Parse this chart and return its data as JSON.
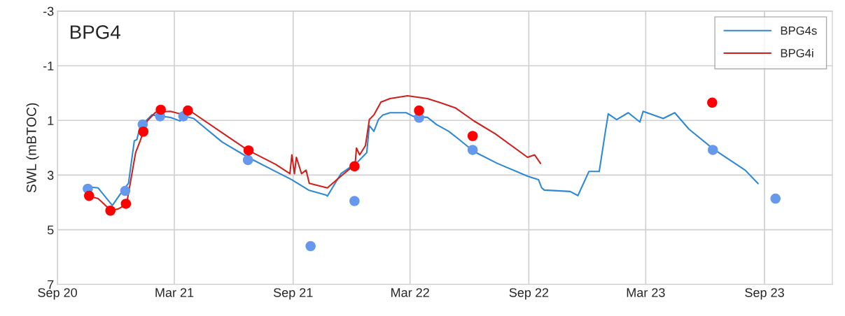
{
  "chart_data": {
    "type": "line",
    "title": "BPG4",
    "ylabel": "SWL (mBTOC)",
    "ylim": [
      7,
      -3
    ],
    "yticks": [
      -3,
      -1,
      1,
      3,
      5,
      7
    ],
    "xlim": [
      "2020-09-01",
      "2023-12-15"
    ],
    "xticks": [
      {
        "value": "2020-09-01",
        "label": "Sep 20"
      },
      {
        "value": "2021-03-01",
        "label": "Mar 21"
      },
      {
        "value": "2021-09-01",
        "label": "Sep 21"
      },
      {
        "value": "2022-03-01",
        "label": "Mar 22"
      },
      {
        "value": "2022-09-01",
        "label": "Sep 22"
      },
      {
        "value": "2023-03-01",
        "label": "Mar 23"
      },
      {
        "value": "2023-09-01",
        "label": "Sep 23"
      }
    ],
    "grid": true,
    "legend": "top right",
    "series": [
      {
        "name": "BPG4s",
        "color": "#2f88d4",
        "marker": "none",
        "x": [
          "2020-10-19",
          "2020-11-03",
          "2020-11-25",
          "2020-12-09",
          "2020-12-20",
          "2020-12-29",
          "2021-01-02",
          "2021-01-07",
          "2021-01-25",
          "2021-02-23",
          "2021-03-10",
          "2021-03-17",
          "2021-03-31",
          "2021-05-14",
          "2021-06-23",
          "2021-08-05",
          "2021-08-30",
          "2021-09-25",
          "2021-10-22",
          "2021-10-24",
          "2021-11-14",
          "2021-12-10",
          "2021-12-24",
          "2021-12-28",
          "2022-01-04",
          "2022-01-11",
          "2022-01-18",
          "2022-01-29",
          "2022-02-23",
          "2022-03-06",
          "2022-03-28",
          "2022-04-11",
          "2022-04-30",
          "2022-05-14",
          "2022-06-08",
          "2022-07-14",
          "2022-08-30",
          "2022-09-16",
          "2022-09-21",
          "2022-09-25",
          "2022-11-04",
          "2022-11-16",
          "2022-12-03",
          "2022-12-19",
          "2022-12-28",
          "2023-01-02",
          "2023-01-15",
          "2023-02-02",
          "2023-02-20",
          "2023-02-25",
          "2023-03-28",
          "2023-04-15",
          "2023-05-07",
          "2023-06-14",
          "2023-08-02",
          "2023-08-22"
        ],
        "values": [
          3.43,
          3.47,
          4.11,
          3.64,
          3.3,
          1.75,
          1.7,
          1.23,
          0.8,
          0.89,
          1.02,
          0.85,
          0.93,
          1.79,
          2.35,
          2.87,
          3.17,
          3.55,
          3.73,
          3.77,
          2.95,
          2.52,
          2.18,
          1.19,
          1.4,
          0.97,
          0.8,
          0.72,
          0.72,
          0.85,
          0.89,
          1.15,
          1.4,
          1.66,
          2.14,
          2.57,
          3.04,
          3.17,
          3.47,
          3.55,
          3.6,
          3.75,
          2.87,
          2.87,
          1.49,
          0.76,
          0.97,
          0.72,
          1.06,
          0.67,
          0.93,
          0.72,
          1.32,
          2.05,
          2.82,
          3.31
        ]
      },
      {
        "name": "BPG4i",
        "color": "#d0201e",
        "marker": "none",
        "x": [
          "2020-10-19",
          "2020-11-03",
          "2020-11-23",
          "2020-12-04",
          "2020-12-17",
          "2020-12-31",
          "2021-01-07",
          "2021-01-18",
          "2021-01-31",
          "2021-02-23",
          "2021-03-10",
          "2021-03-24",
          "2021-05-14",
          "2021-06-23",
          "2021-08-05",
          "2021-08-27",
          "2021-08-30",
          "2021-09-03",
          "2021-09-06",
          "2021-09-14",
          "2021-09-21",
          "2021-09-26",
          "2021-10-24",
          "2021-11-14",
          "2021-12-06",
          "2021-12-08",
          "2021-12-13",
          "2021-12-22",
          "2021-12-28",
          "2022-01-04",
          "2022-01-15",
          "2022-01-29",
          "2022-02-25",
          "2022-03-28",
          "2022-04-19",
          "2022-05-10",
          "2022-06-08",
          "2022-07-11",
          "2022-08-30",
          "2022-09-10",
          "2022-09-19"
        ],
        "values": [
          3.77,
          3.86,
          4.3,
          4.24,
          4.07,
          2.18,
          1.75,
          1.02,
          0.7,
          0.67,
          0.76,
          0.63,
          1.45,
          2.09,
          2.61,
          2.95,
          2.26,
          2.95,
          2.35,
          2.95,
          2.82,
          3.3,
          3.47,
          3.04,
          2.61,
          2.01,
          2.26,
          1.92,
          0.97,
          0.8,
          0.33,
          0.2,
          0.1,
          0.2,
          0.37,
          0.54,
          1.02,
          1.49,
          2.35,
          2.26,
          2.57
        ]
      },
      {
        "type": "scatter",
        "color": "#6699ee",
        "marker": "circle",
        "x": [
          "2020-10-18",
          "2020-12-15",
          "2021-01-11",
          "2021-02-07",
          "2021-03-15",
          "2021-06-23",
          "2021-09-28",
          "2021-12-05",
          "2022-03-15",
          "2022-06-06",
          "2023-06-13",
          "2023-09-18"
        ],
        "values": [
          3.5,
          3.58,
          1.15,
          0.85,
          0.85,
          2.45,
          5.6,
          3.95,
          0.9,
          2.08,
          2.08,
          3.86
        ]
      },
      {
        "type": "scatter",
        "color": "#ff0000",
        "marker": "circle",
        "x": [
          "2020-10-20",
          "2020-11-22",
          "2020-12-16",
          "2021-01-12",
          "2021-02-08",
          "2021-03-22",
          "2021-06-24",
          "2021-12-05",
          "2022-03-15",
          "2022-06-06",
          "2023-06-12"
        ],
        "values": [
          3.76,
          4.3,
          4.05,
          1.41,
          0.61,
          0.64,
          2.1,
          2.68,
          0.64,
          1.57,
          0.35
        ]
      }
    ]
  }
}
